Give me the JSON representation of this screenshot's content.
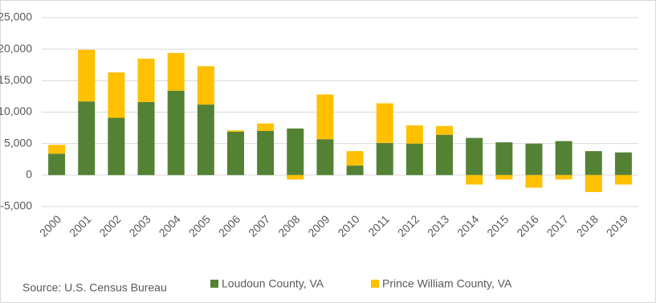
{
  "chart_data": {
    "type": "bar",
    "stacked": true,
    "categories": [
      "2000",
      "2001",
      "2002",
      "2003",
      "2004",
      "2005",
      "2006",
      "2007",
      "2008",
      "2009",
      "2010",
      "2011",
      "2012",
      "2013",
      "2014",
      "2015",
      "2016",
      "2017",
      "2018",
      "2019"
    ],
    "series": [
      {
        "name": "Loudoun County, VA",
        "color": "#548235",
        "values": [
          3400,
          11700,
          9100,
          11600,
          13400,
          11200,
          6900,
          7000,
          7400,
          5700,
          1500,
          5100,
          5000,
          6400,
          5900,
          5200,
          5000,
          5400,
          3800,
          3600
        ]
      },
      {
        "name": "Prince William County, VA",
        "color": "#ffc000",
        "values": [
          1400,
          8200,
          7200,
          6900,
          6000,
          6100,
          200,
          1200,
          -700,
          7100,
          2300,
          6300,
          2900,
          1400,
          -1500,
          -700,
          -2000,
          -700,
          -2700,
          -1500
        ]
      }
    ],
    "ylim": [
      -5000,
      25000
    ],
    "yticks": [
      {
        "value": -5000,
        "label": "-5,000"
      },
      0,
      {
        "value": 5000,
        "label": "5,000"
      },
      {
        "value": 10000,
        "label": "10,000"
      },
      {
        "value": 15000,
        "label": "15,000"
      },
      {
        "value": 20000,
        "label": "20,000"
      },
      {
        "value": 25000,
        "label": "25,000"
      }
    ],
    "grid": true,
    "legend": "bottom",
    "source": "Source: U.S. Census Bureau"
  }
}
